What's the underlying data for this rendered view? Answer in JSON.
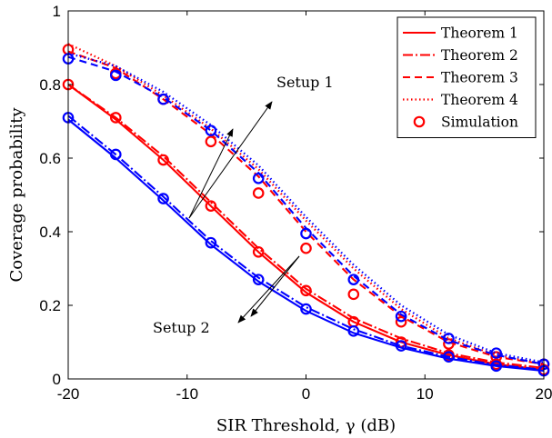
{
  "chart_data": {
    "type": "line",
    "xlabel": "SIR Threshold, γ (dB)",
    "ylabel": "Coverage probability",
    "xlim": [
      -20,
      20
    ],
    "ylim": [
      0,
      1
    ],
    "xticks": [
      -20,
      -10,
      0,
      10,
      20
    ],
    "xtick_labels": [
      "-20",
      "-10",
      "0",
      "10",
      "20"
    ],
    "yticks": [
      0,
      0.2,
      0.4,
      0.6,
      0.8,
      1
    ],
    "ytick_labels": [
      "0",
      "0.2",
      "0.4",
      "0.6",
      "0.8",
      "1"
    ],
    "grid": false,
    "legend_position": "top-right",
    "legend": [
      {
        "label": "Theorem 1",
        "style": "solid"
      },
      {
        "label": "Theorem 2",
        "style": "dashdot"
      },
      {
        "label": "Theorem 3",
        "style": "dashed"
      },
      {
        "label": "Theorem 4",
        "style": "dotted"
      },
      {
        "label": "Simulation",
        "style": "marker-circle"
      }
    ],
    "x": [
      -20,
      -16,
      -12,
      -8,
      -4,
      0,
      4,
      8,
      12,
      16,
      20
    ],
    "series": [
      {
        "curve": "Theorem 4",
        "color": "#ff0000",
        "style": "dotted",
        "values": [
          0.91,
          0.85,
          0.77,
          0.68,
          0.57,
          0.43,
          0.3,
          0.19,
          0.11,
          0.065,
          0.042
        ]
      },
      {
        "curve": "Theorem 3",
        "color": "#ff0000",
        "style": "dashed",
        "values": [
          0.89,
          0.845,
          0.76,
          0.665,
          0.55,
          0.4,
          0.27,
          0.17,
          0.1,
          0.06,
          0.04
        ]
      },
      {
        "curve": "Simulation",
        "color": "#ff0000",
        "style": "marker-circle",
        "values": [
          0.895,
          0.83,
          0.76,
          0.645,
          0.505,
          0.355,
          0.23,
          0.155,
          0.095,
          0.06,
          0.04
        ]
      },
      {
        "curve": "Theorem 4",
        "color": "#0000ff",
        "style": "dotted",
        "values": [
          0.885,
          0.85,
          0.78,
          0.69,
          0.58,
          0.44,
          0.31,
          0.2,
          0.12,
          0.07,
          0.045
        ]
      },
      {
        "curve": "Theorem 3",
        "color": "#0000ff",
        "style": "dashed",
        "values": [
          0.875,
          0.835,
          0.765,
          0.675,
          0.56,
          0.41,
          0.28,
          0.175,
          0.105,
          0.065,
          0.04
        ]
      },
      {
        "curve": "Simulation",
        "color": "#0000ff",
        "style": "marker-circle",
        "values": [
          0.87,
          0.825,
          0.76,
          0.675,
          0.545,
          0.395,
          0.27,
          0.17,
          0.11,
          0.07,
          0.04
        ]
      },
      {
        "curve": "Theorem 1",
        "color": "#ff0000",
        "style": "solid",
        "values": [
          0.8,
          0.705,
          0.595,
          0.47,
          0.345,
          0.235,
          0.155,
          0.1,
          0.065,
          0.04,
          0.025
        ]
      },
      {
        "curve": "Theorem 2",
        "color": "#ff0000",
        "style": "dashdot",
        "values": [
          0.8,
          0.71,
          0.605,
          0.48,
          0.355,
          0.245,
          0.165,
          0.11,
          0.07,
          0.045,
          0.03
        ]
      },
      {
        "curve": "Simulation",
        "color": "#ff0000",
        "style": "marker-circle",
        "values": [
          0.8,
          0.71,
          0.595,
          0.47,
          0.345,
          0.24,
          0.155,
          0.1,
          0.065,
          0.04,
          0.025
        ]
      },
      {
        "curve": "Theorem 1",
        "color": "#0000ff",
        "style": "solid",
        "values": [
          0.705,
          0.6,
          0.485,
          0.365,
          0.265,
          0.185,
          0.125,
          0.085,
          0.055,
          0.035,
          0.022
        ]
      },
      {
        "curve": "Theorem 2",
        "color": "#0000ff",
        "style": "dashdot",
        "values": [
          0.715,
          0.61,
          0.495,
          0.375,
          0.275,
          0.195,
          0.135,
          0.09,
          0.06,
          0.038,
          0.025
        ]
      },
      {
        "curve": "Simulation",
        "color": "#0000ff",
        "style": "marker-circle",
        "values": [
          0.71,
          0.61,
          0.49,
          0.37,
          0.27,
          0.19,
          0.13,
          0.09,
          0.06,
          0.035,
          0.022
        ]
      }
    ],
    "annotations": [
      {
        "text": "Setup 1",
        "arrow_to": [
          [
            -8,
            0.675
          ],
          [
            -2,
            0.75
          ]
        ],
        "arrow_from": [
          -7,
          0.43
        ]
      },
      {
        "text": "Setup 2",
        "arrow_to": [
          [
            -4,
            0.17
          ],
          [
            -8,
            0.145
          ]
        ],
        "arrow_from": [
          1,
          0.37
        ]
      }
    ]
  }
}
